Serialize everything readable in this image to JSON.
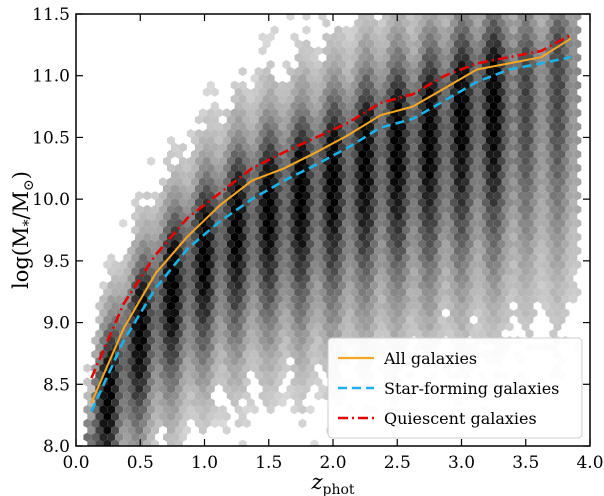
{
  "chart_data": {
    "type": "line",
    "background": "hexbin-density",
    "xlabel_base": "z",
    "xlabel_sub": "phot",
    "ylabel_main": "log(M",
    "ylabel_sub_star": "*",
    "ylabel_over": "/M",
    "ylabel_sub_sun": "⊙",
    "ylabel_close": ")",
    "xlim": [
      0.0,
      4.0
    ],
    "ylim": [
      8.0,
      11.5
    ],
    "xticks": [
      "0.0",
      "0.5",
      "1.0",
      "1.5",
      "2.0",
      "2.5",
      "3.0",
      "3.5",
      "4.0"
    ],
    "yticks": [
      "8.0",
      "8.5",
      "9.0",
      "9.5",
      "10.0",
      "10.5",
      "11.0",
      "11.5"
    ],
    "legend_position": "lower-right",
    "series": [
      {
        "name": "All galaxies",
        "color": "#f5a623",
        "style": "solid",
        "x": [
          0.12,
          0.37,
          0.62,
          0.87,
          1.12,
          1.37,
          1.62,
          1.87,
          2.12,
          2.37,
          2.62,
          2.87,
          3.12,
          3.37,
          3.62,
          3.85
        ],
        "y": [
          8.35,
          8.95,
          9.4,
          9.7,
          9.95,
          10.15,
          10.25,
          10.38,
          10.52,
          10.68,
          10.75,
          10.9,
          11.05,
          11.1,
          11.15,
          11.3
        ]
      },
      {
        "name": "Star-forming galaxies",
        "color": "#1ab2e8",
        "style": "dashed",
        "x": [
          0.12,
          0.37,
          0.62,
          0.87,
          1.12,
          1.37,
          1.62,
          1.87,
          2.12,
          2.37,
          2.62,
          2.87,
          3.12,
          3.37,
          3.62,
          3.85
        ],
        "y": [
          8.28,
          8.85,
          9.28,
          9.6,
          9.82,
          10.0,
          10.15,
          10.28,
          10.42,
          10.58,
          10.65,
          10.8,
          10.95,
          11.05,
          11.1,
          11.15
        ]
      },
      {
        "name": "Quiescent galaxies",
        "color": "#e60000",
        "style": "dashdot",
        "x": [
          0.12,
          0.37,
          0.62,
          0.87,
          1.12,
          1.37,
          1.62,
          1.87,
          2.12,
          2.37,
          2.62,
          2.87,
          3.12,
          3.37,
          3.62,
          3.85
        ],
        "y": [
          8.55,
          9.15,
          9.55,
          9.85,
          10.05,
          10.25,
          10.38,
          10.5,
          10.62,
          10.78,
          10.85,
          11.0,
          11.1,
          11.15,
          11.2,
          11.33
        ]
      }
    ]
  }
}
